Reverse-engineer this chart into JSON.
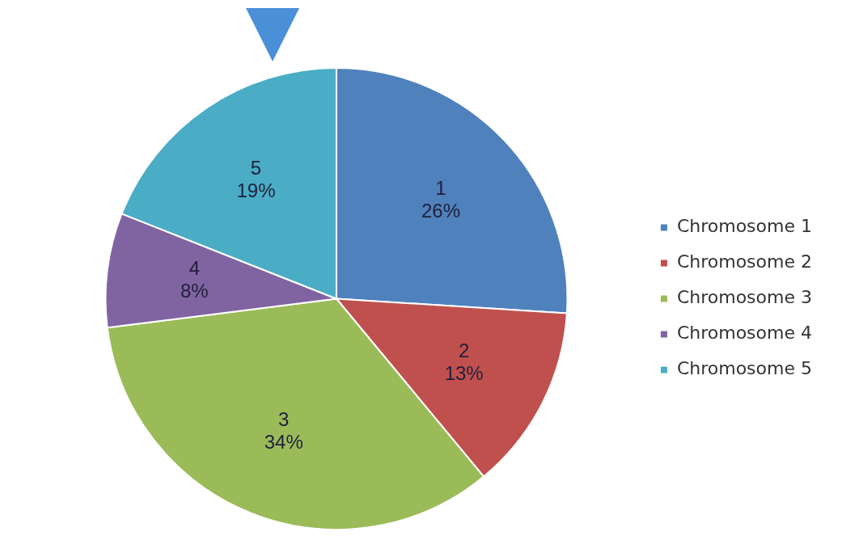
{
  "chart_data": {
    "type": "pie",
    "categories": [
      "Chromosome 1",
      "Chromosome 2",
      "Chromosome 3",
      "Chromosome 4",
      "Chromosome 5"
    ],
    "values": [
      26,
      13,
      34,
      8,
      19
    ],
    "colors": [
      "#4f81bd",
      "#c0504d",
      "#9bbb59",
      "#8064a2",
      "#4bacc6"
    ],
    "value_labels": [
      "1\n26%",
      "2\n13%",
      "3\n34%",
      "4\n8%",
      "5\n19%"
    ],
    "legend": "right"
  }
}
